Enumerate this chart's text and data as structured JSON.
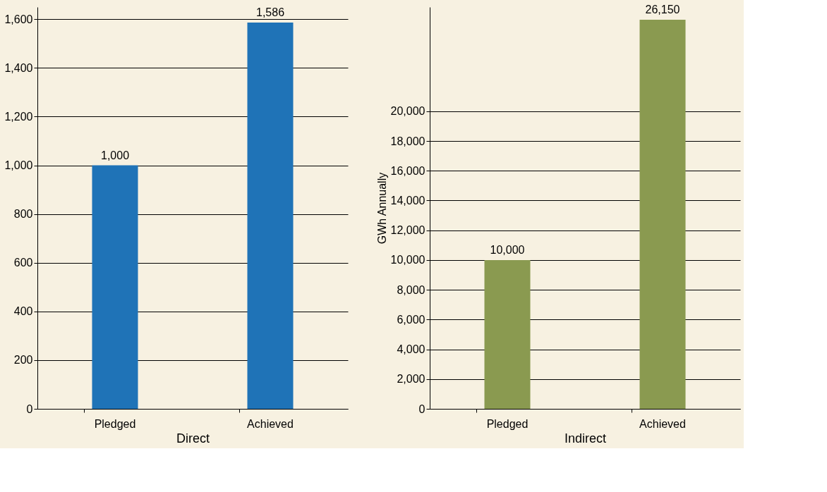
{
  "chart_data": [
    {
      "type": "bar",
      "categories": [
        "Pledged",
        "Achieved"
      ],
      "values": [
        1000,
        1586
      ],
      "value_labels": [
        "1,000",
        "1,586"
      ],
      "color": "#1f73b7",
      "xlabel": "Direct",
      "ylim": [
        0,
        1650
      ],
      "yticks": [
        0,
        {
          "value": 200,
          "label": "200"
        },
        {
          "value": 400,
          "label": "400"
        },
        {
          "value": 600,
          "label": "600"
        },
        {
          "value": 800,
          "label": "800"
        },
        {
          "value": 1000,
          "label": "1,000"
        },
        {
          "value": 1200,
          "label": "1,200"
        },
        {
          "value": 1400,
          "label": "1,400"
        },
        {
          "value": 1600,
          "label": "1,600"
        }
      ],
      "grid": "y"
    },
    {
      "type": "bar",
      "categories": [
        "Pledged",
        "Achieved"
      ],
      "values": [
        10000,
        26150
      ],
      "value_labels": [
        "10,000",
        "26,150"
      ],
      "color": "#8a9a50",
      "xlabel": "Indirect",
      "ylabel": "GWh Annually",
      "ylim": [
        0,
        27000
      ],
      "yticks": [
        0,
        {
          "value": 2000,
          "label": "2,000"
        },
        {
          "value": 4000,
          "label": "4,000"
        },
        {
          "value": 6000,
          "label": "6,000"
        },
        {
          "value": 8000,
          "label": "8,000"
        },
        {
          "value": 10000,
          "label": "10,000"
        },
        {
          "value": 12000,
          "label": "12,000"
        },
        {
          "value": 14000,
          "label": "14,000"
        },
        {
          "value": 16000,
          "label": "16,000"
        },
        {
          "value": 18000,
          "label": "18,000"
        },
        {
          "value": 20000,
          "label": "20,000"
        }
      ],
      "grid": "y"
    }
  ]
}
